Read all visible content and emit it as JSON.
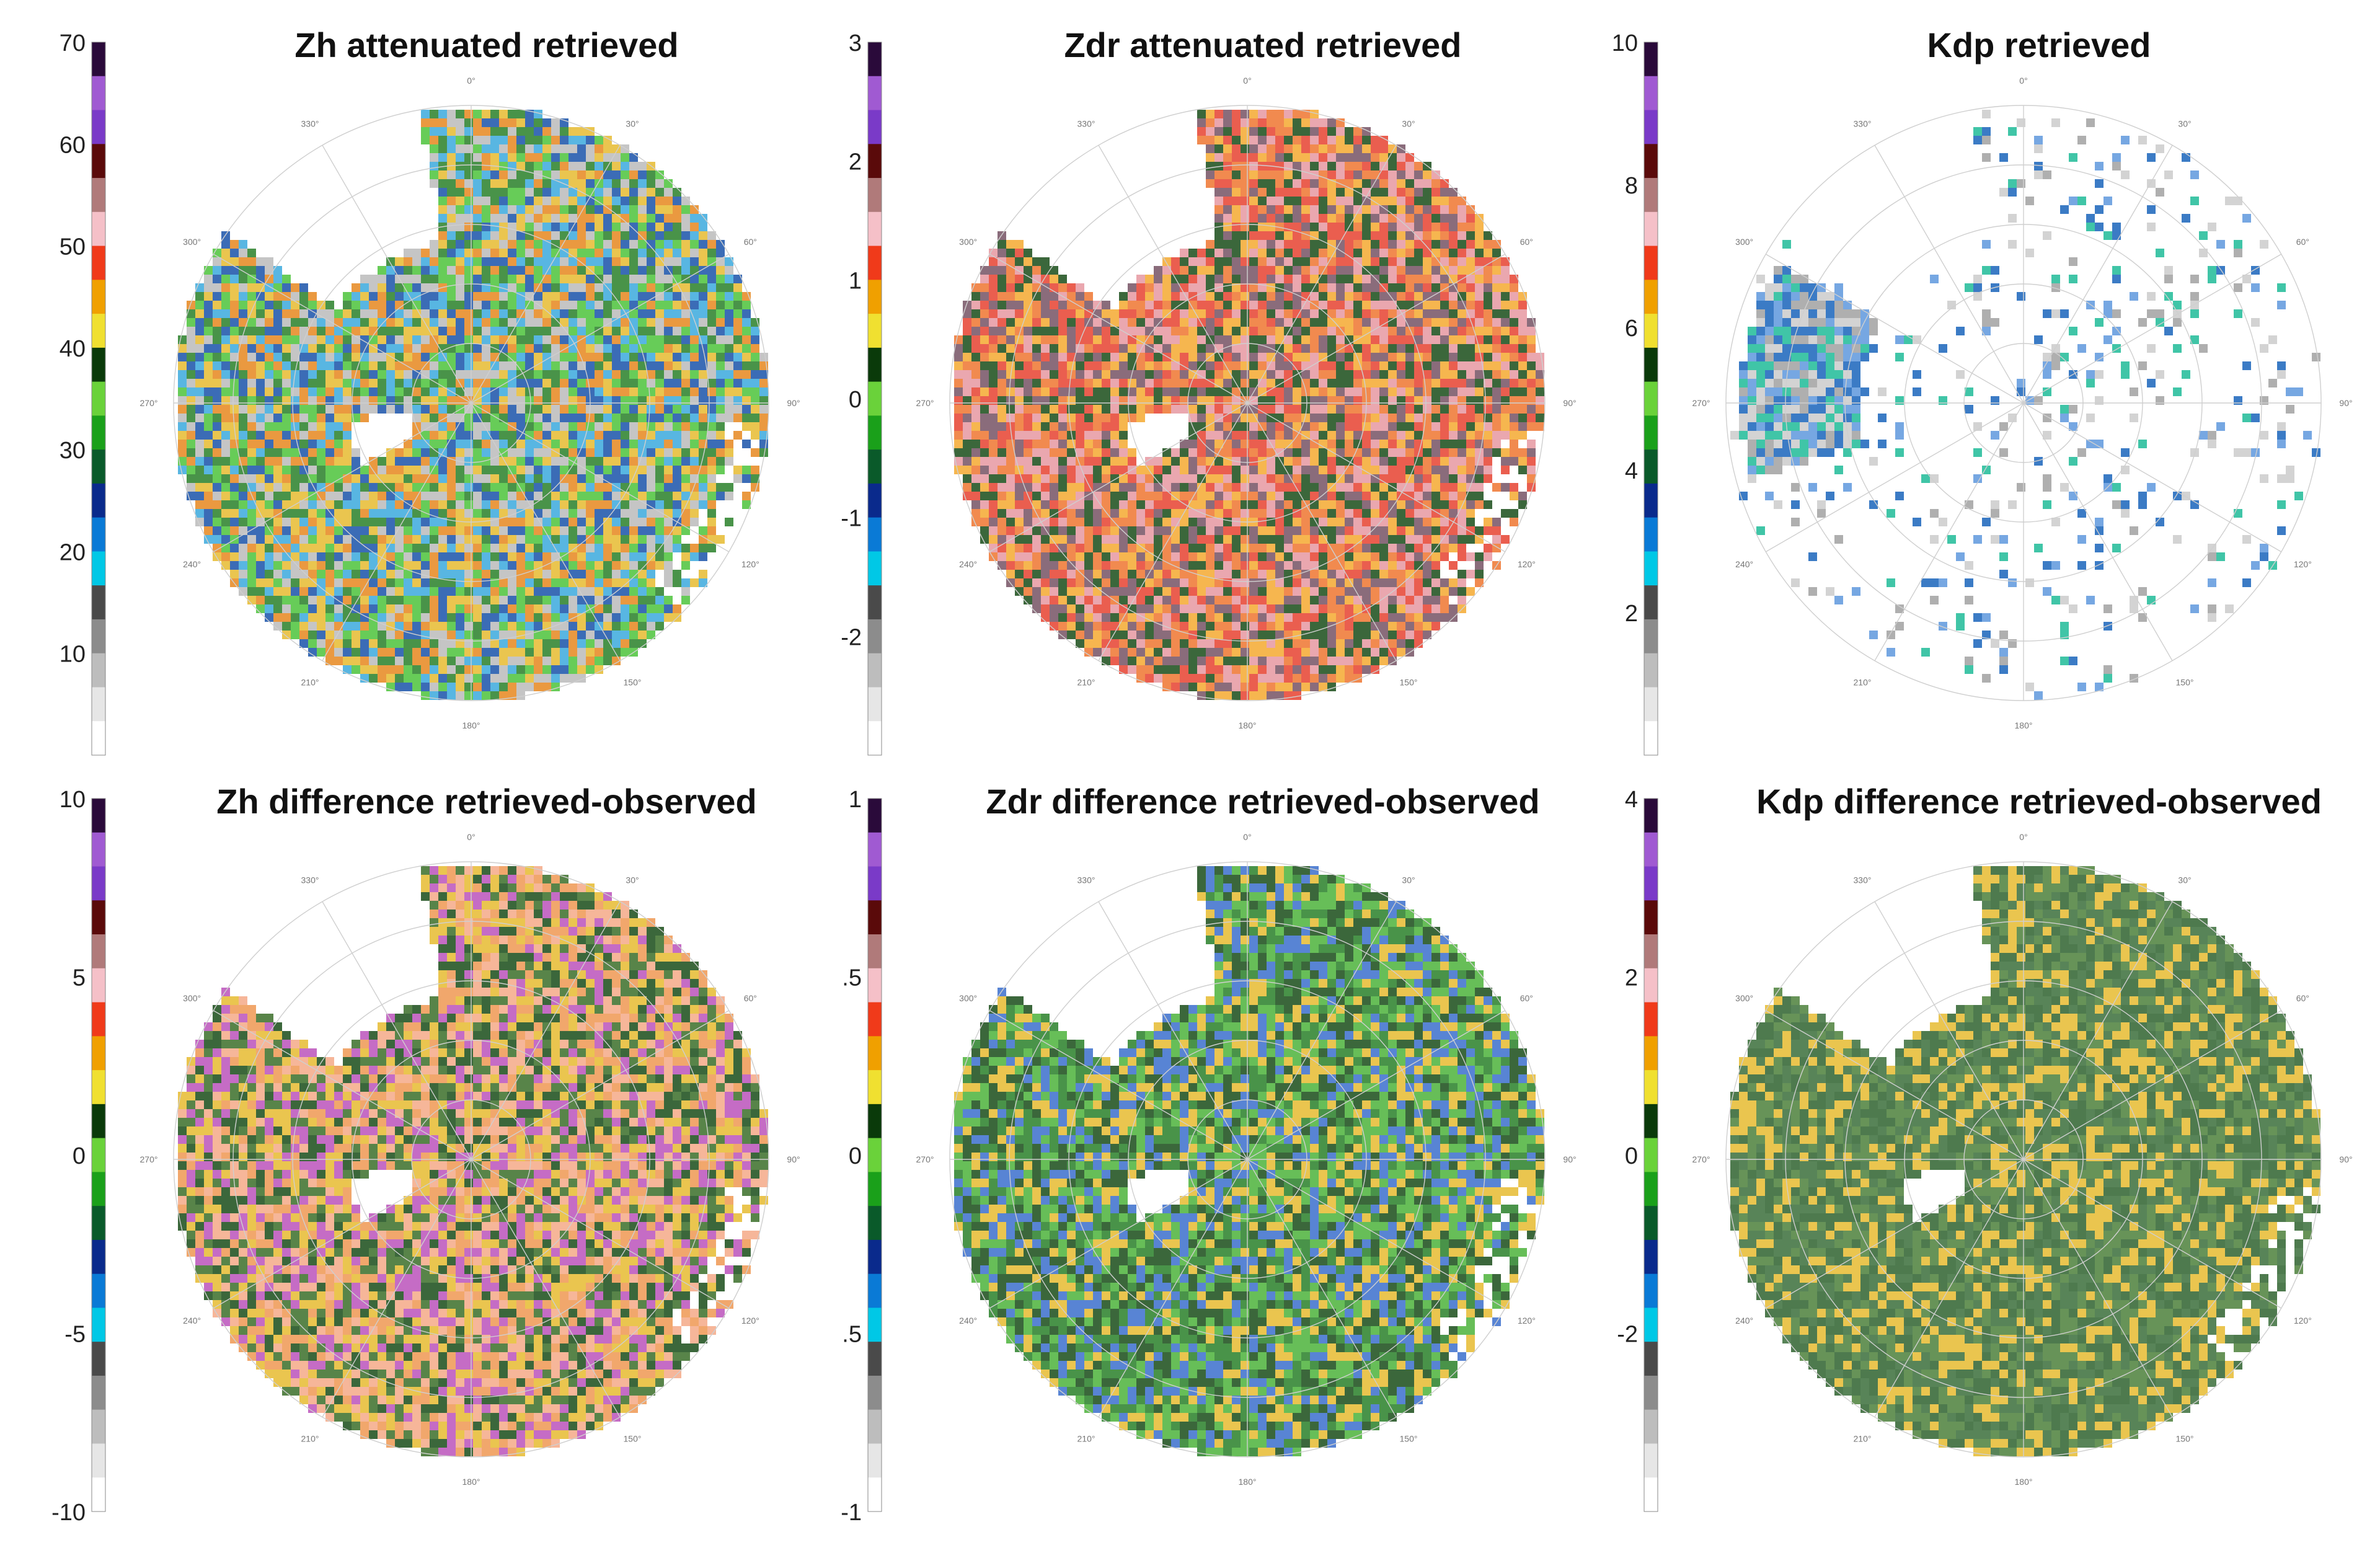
{
  "azimuth_labels": [
    "0°",
    "30°",
    "60°",
    "90°",
    "120°",
    "150°",
    "180°",
    "210°",
    "240°",
    "270°",
    "300°",
    "330°"
  ],
  "chart_data": [
    {
      "type": "heatmap",
      "title": "Zh attenuated retrieved",
      "colorbar": {
        "range": [
          0,
          70
        ],
        "ticks": [
          "70",
          "60",
          "50",
          "40",
          "30",
          "20",
          "10"
        ]
      },
      "field": "zh"
    },
    {
      "type": "heatmap",
      "title": "Zdr attenuated retrieved",
      "colorbar": {
        "range": [
          -3,
          3
        ],
        "ticks": [
          "3",
          "2",
          "1",
          "0",
          "-1",
          "-2"
        ]
      },
      "field": "zdr"
    },
    {
      "type": "heatmap",
      "title": "Kdp retrieved",
      "colorbar": {
        "range": [
          0,
          10
        ],
        "ticks": [
          "10",
          "8",
          "6",
          "4",
          "2"
        ]
      },
      "field": "kdp"
    },
    {
      "type": "heatmap",
      "title": "Zh difference retrieved-observed",
      "colorbar": {
        "range": [
          -10,
          10
        ],
        "ticks": [
          "10",
          "5",
          "0",
          "-5",
          "-10"
        ]
      },
      "field": "dzh"
    },
    {
      "type": "heatmap",
      "title": "Zdr difference retrieved-observed",
      "colorbar": {
        "range": [
          -1,
          1
        ],
        "ticks": [
          "1",
          ".5",
          "0",
          ".5",
          "-1"
        ]
      },
      "field": "dzdr"
    },
    {
      "type": "heatmap",
      "title": "Kdp difference retrieved-observed",
      "colorbar": {
        "range": [
          -4,
          4
        ],
        "ticks": [
          "4",
          "2",
          "0",
          "-2"
        ]
      },
      "field": "dkdp"
    }
  ],
  "colors": {
    "colormap": [
      "#ffffff",
      "#e6e6e6",
      "#bdbdbd",
      "#8c8c8c",
      "#4a4a4a",
      "#00c8e6",
      "#0a7ad6",
      "#0a2a8c",
      "#0a5a2a",
      "#1aa01a",
      "#6ad23a",
      "#0a3a0a",
      "#f0e030",
      "#f0a000",
      "#f03a1a",
      "#f5c0c8",
      "#b07a7a",
      "#5a0a0a",
      "#7a3ac8",
      "#a05ad2",
      "#2a0a3a"
    ],
    "grid": "#cfcfcf",
    "zh": [
      "#3a8a3a",
      "#5ac84a",
      "#4ab0e0",
      "#2a60b0",
      "#e8c040",
      "#e89030",
      "#c0c0c0"
    ],
    "zdr": [
      "#f08040",
      "#f5b040",
      "#e8a0a8",
      "#806070",
      "#2a5a2a",
      "#e85040"
    ],
    "kdp": [
      "#cfcfcf",
      "#a8a8a8",
      "#6aa0e0",
      "#2a70c0",
      "#30c0a0"
    ],
    "dzh": [
      "#f0a060",
      "#e8c040",
      "#4a7a3a",
      "#c060c0",
      "#2a5a2a",
      "#f5b090"
    ],
    "dzdr": [
      "#5ab84a",
      "#3a8a3a",
      "#e8c040",
      "#4a7ad0",
      "#2a5a2a"
    ],
    "dkdp": [
      "#4a7a4a",
      "#3f6f3f",
      "#5a8a4a",
      "#e8c040"
    ]
  }
}
